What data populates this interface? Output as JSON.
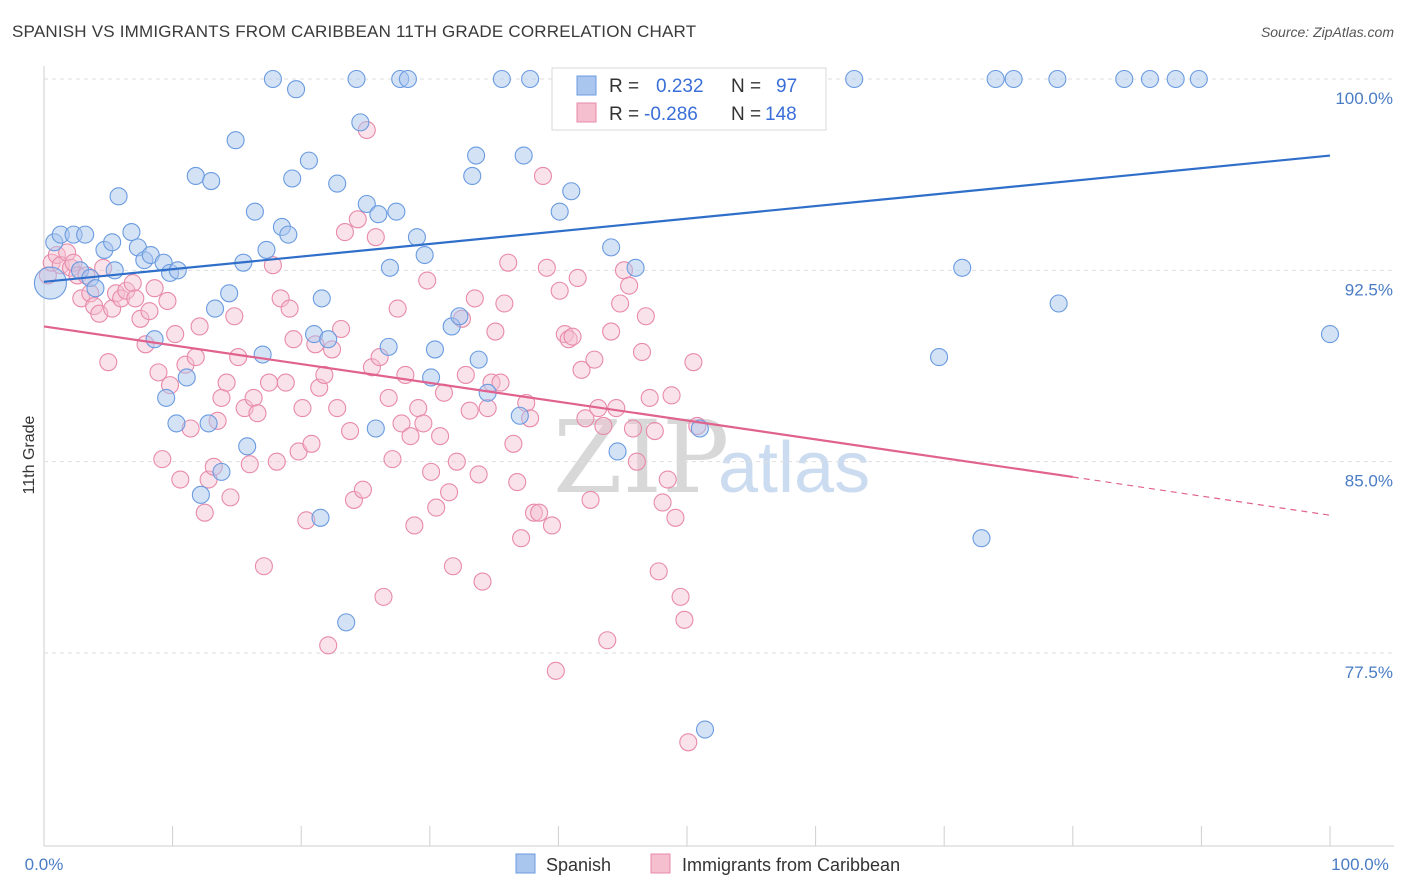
{
  "title": "SPANISH VS IMMIGRANTS FROM CARIBBEAN 11TH GRADE CORRELATION CHART",
  "source": "Source: ZipAtlas.com",
  "colors": {
    "blue": "#6a9be0",
    "blue_fill": "#a9c6ee",
    "blue_line": "#2f6fca",
    "pink": "#e88aaa",
    "pink_fill": "#f5bfd0",
    "pink_line": "#e0628e",
    "tick": "#4a7cc4"
  },
  "legend": {
    "r_label": "R =",
    "n_label": "N =",
    "rows": [
      {
        "r": "0.232",
        "n": "97"
      },
      {
        "r": "-0.286",
        "n": "148"
      }
    ]
  },
  "watermark": {
    "zip": "ZIP",
    "atlas": "atlas"
  },
  "chart_data": {
    "type": "scatter",
    "title": "SPANISH VS IMMIGRANTS FROM CARIBBEAN 11TH GRADE CORRELATION CHART",
    "xlabel": "",
    "ylabel": "11th Grade",
    "xlim": [
      0,
      100
    ],
    "ylim": [
      71,
      101
    ],
    "x_tick_labels": [
      "0.0%",
      "100.0%"
    ],
    "y_ticks": [
      77.5,
      85.0,
      92.5,
      100.0
    ],
    "y_tick_labels": [
      "77.5%",
      "85.0%",
      "92.5%",
      "100.0%"
    ],
    "series": [
      {
        "name": "Spanish",
        "R": 0.232,
        "N": 97,
        "trend": {
          "x": [
            0,
            100
          ],
          "y": [
            92.05,
            97.0
          ]
        },
        "points": [
          [
            0.5,
            92.0
          ],
          [
            0.8,
            93.6
          ],
          [
            1.3,
            93.9
          ],
          [
            2.3,
            93.9
          ],
          [
            2.8,
            92.5
          ],
          [
            3.2,
            93.9
          ],
          [
            3.6,
            92.2
          ],
          [
            4.0,
            91.8
          ],
          [
            4.7,
            93.3
          ],
          [
            5.5,
            92.5
          ],
          [
            5.3,
            93.6
          ],
          [
            5.8,
            95.4
          ],
          [
            6.8,
            94.0
          ],
          [
            7.3,
            93.4
          ],
          [
            7.8,
            92.9
          ],
          [
            8.3,
            93.1
          ],
          [
            8.6,
            89.8
          ],
          [
            9.3,
            92.8
          ],
          [
            9.8,
            92.4
          ],
          [
            10.4,
            92.5
          ],
          [
            10.3,
            86.5
          ],
          [
            11.1,
            88.3
          ],
          [
            11.8,
            96.2
          ],
          [
            12.2,
            83.7
          ],
          [
            12.8,
            86.5
          ],
          [
            13.3,
            91.0
          ],
          [
            13.8,
            84.6
          ],
          [
            14.4,
            91.6
          ],
          [
            14.9,
            97.6
          ],
          [
            15.5,
            92.8
          ],
          [
            15.8,
            85.6
          ],
          [
            16.4,
            94.8
          ],
          [
            17.0,
            89.2
          ],
          [
            17.3,
            93.3
          ],
          [
            17.8,
            100.0
          ],
          [
            18.5,
            94.2
          ],
          [
            19.0,
            93.9
          ],
          [
            19.3,
            96.1
          ],
          [
            19.6,
            99.6
          ],
          [
            20.6,
            96.8
          ],
          [
            21.0,
            90.0
          ],
          [
            21.6,
            91.4
          ],
          [
            22.1,
            89.8
          ],
          [
            21.5,
            82.8
          ],
          [
            22.8,
            95.9
          ],
          [
            23.5,
            78.7
          ],
          [
            24.3,
            100.0
          ],
          [
            24.6,
            98.3
          ],
          [
            25.1,
            95.1
          ],
          [
            26.0,
            94.7
          ],
          [
            26.8,
            89.5
          ],
          [
            26.9,
            92.6
          ],
          [
            27.4,
            94.8
          ],
          [
            27.7,
            100.0
          ],
          [
            28.3,
            100.0
          ],
          [
            29.0,
            93.8
          ],
          [
            29.6,
            93.1
          ],
          [
            30.1,
            88.3
          ],
          [
            30.4,
            89.4
          ],
          [
            31.7,
            90.3
          ],
          [
            32.3,
            90.7
          ],
          [
            33.3,
            96.2
          ],
          [
            33.6,
            97.0
          ],
          [
            33.8,
            89.0
          ],
          [
            34.5,
            87.7
          ],
          [
            35.6,
            100.0
          ],
          [
            37.3,
            97.0
          ],
          [
            37.8,
            100.0
          ],
          [
            40.1,
            94.8
          ],
          [
            40.3,
            100.0
          ],
          [
            41.0,
            95.6
          ],
          [
            42.8,
            99.6
          ],
          [
            44.1,
            93.4
          ],
          [
            44.6,
            85.4
          ],
          [
            45.5,
            100.0
          ],
          [
            46.0,
            92.6
          ],
          [
            50.8,
            100.0
          ],
          [
            51.0,
            86.3
          ],
          [
            51.4,
            74.5
          ],
          [
            56.3,
            100.0
          ],
          [
            63.0,
            100.0
          ],
          [
            69.6,
            89.1
          ],
          [
            71.4,
            92.6
          ],
          [
            72.9,
            82.0
          ],
          [
            74.0,
            100.0
          ],
          [
            75.4,
            100.0
          ],
          [
            78.8,
            100.0
          ],
          [
            78.9,
            91.2
          ],
          [
            84.0,
            100.0
          ],
          [
            86.0,
            100.0
          ],
          [
            88.0,
            100.0
          ],
          [
            89.8,
            100.0
          ],
          [
            100.0,
            90.0
          ],
          [
            13.0,
            96.0
          ],
          [
            25.8,
            86.3
          ],
          [
            37.0,
            86.8
          ],
          [
            9.5,
            87.5
          ]
        ]
      },
      {
        "name": "Immigrants from Caribbean",
        "R": -0.286,
        "N": 148,
        "trend": {
          "x": [
            0,
            80
          ],
          "y": [
            90.3,
            84.4
          ]
        },
        "trend_dashed": {
          "x": [
            80,
            100
          ],
          "y": [
            84.4,
            82.9
          ]
        },
        "points": [
          [
            0.3,
            92.3
          ],
          [
            0.6,
            92.8
          ],
          [
            1.0,
            93.1
          ],
          [
            1.3,
            92.7
          ],
          [
            1.8,
            93.2
          ],
          [
            2.1,
            92.6
          ],
          [
            2.3,
            92.8
          ],
          [
            2.6,
            92.3
          ],
          [
            2.9,
            91.4
          ],
          [
            3.3,
            92.3
          ],
          [
            3.6,
            91.6
          ],
          [
            3.9,
            91.1
          ],
          [
            4.3,
            90.8
          ],
          [
            4.6,
            92.6
          ],
          [
            5.0,
            88.9
          ],
          [
            5.3,
            91.0
          ],
          [
            5.6,
            91.6
          ],
          [
            6.0,
            91.4
          ],
          [
            6.4,
            91.7
          ],
          [
            6.9,
            92.0
          ],
          [
            7.1,
            91.4
          ],
          [
            7.5,
            90.6
          ],
          [
            7.9,
            89.6
          ],
          [
            8.2,
            90.9
          ],
          [
            8.6,
            91.8
          ],
          [
            8.9,
            88.5
          ],
          [
            9.2,
            85.1
          ],
          [
            9.6,
            91.3
          ],
          [
            9.8,
            88.0
          ],
          [
            10.2,
            90.0
          ],
          [
            10.6,
            84.3
          ],
          [
            11.0,
            88.8
          ],
          [
            11.4,
            86.3
          ],
          [
            11.8,
            89.1
          ],
          [
            12.1,
            90.3
          ],
          [
            12.5,
            83.0
          ],
          [
            12.8,
            84.3
          ],
          [
            13.2,
            84.8
          ],
          [
            13.5,
            86.6
          ],
          [
            13.8,
            87.5
          ],
          [
            14.2,
            88.1
          ],
          [
            14.5,
            83.6
          ],
          [
            14.8,
            90.7
          ],
          [
            15.1,
            89.1
          ],
          [
            15.6,
            87.1
          ],
          [
            16.0,
            84.9
          ],
          [
            16.3,
            87.5
          ],
          [
            16.6,
            86.9
          ],
          [
            17.1,
            80.9
          ],
          [
            17.5,
            88.1
          ],
          [
            17.8,
            92.7
          ],
          [
            18.1,
            85.0
          ],
          [
            18.4,
            91.4
          ],
          [
            18.8,
            88.1
          ],
          [
            19.1,
            91.0
          ],
          [
            19.4,
            89.8
          ],
          [
            19.8,
            85.4
          ],
          [
            20.1,
            87.1
          ],
          [
            20.4,
            82.7
          ],
          [
            20.8,
            85.7
          ],
          [
            21.1,
            89.6
          ],
          [
            21.4,
            87.9
          ],
          [
            21.8,
            88.4
          ],
          [
            22.1,
            77.8
          ],
          [
            22.4,
            89.4
          ],
          [
            22.8,
            87.1
          ],
          [
            23.1,
            90.2
          ],
          [
            23.4,
            94.0
          ],
          [
            23.8,
            86.2
          ],
          [
            24.1,
            83.5
          ],
          [
            24.4,
            94.5
          ],
          [
            24.8,
            83.9
          ],
          [
            25.1,
            98.0
          ],
          [
            25.5,
            88.7
          ],
          [
            25.8,
            93.8
          ],
          [
            26.1,
            89.1
          ],
          [
            26.4,
            79.7
          ],
          [
            26.8,
            87.5
          ],
          [
            27.1,
            85.1
          ],
          [
            27.5,
            91.0
          ],
          [
            27.8,
            86.5
          ],
          [
            28.1,
            88.4
          ],
          [
            28.5,
            86.0
          ],
          [
            28.8,
            82.5
          ],
          [
            29.1,
            87.1
          ],
          [
            29.5,
            86.5
          ],
          [
            29.8,
            92.1
          ],
          [
            30.1,
            84.6
          ],
          [
            30.5,
            83.2
          ],
          [
            30.8,
            86.0
          ],
          [
            31.1,
            87.7
          ],
          [
            31.5,
            83.8
          ],
          [
            31.8,
            80.9
          ],
          [
            32.1,
            85.0
          ],
          [
            32.5,
            90.6
          ],
          [
            32.8,
            88.4
          ],
          [
            33.1,
            87.0
          ],
          [
            33.5,
            91.4
          ],
          [
            33.8,
            84.5
          ],
          [
            34.1,
            80.3
          ],
          [
            34.5,
            87.1
          ],
          [
            34.8,
            88.1
          ],
          [
            35.1,
            90.1
          ],
          [
            35.5,
            88.1
          ],
          [
            35.8,
            91.2
          ],
          [
            36.1,
            92.8
          ],
          [
            36.5,
            85.7
          ],
          [
            36.8,
            84.2
          ],
          [
            37.1,
            82.0
          ],
          [
            37.5,
            87.3
          ],
          [
            37.8,
            86.7
          ],
          [
            38.1,
            83.0
          ],
          [
            38.5,
            83.0
          ],
          [
            38.8,
            96.2
          ],
          [
            39.1,
            92.6
          ],
          [
            39.5,
            82.5
          ],
          [
            39.8,
            76.8
          ],
          [
            40.1,
            91.7
          ],
          [
            40.5,
            90.0
          ],
          [
            40.8,
            89.8
          ],
          [
            41.1,
            89.9
          ],
          [
            41.5,
            92.2
          ],
          [
            41.8,
            88.6
          ],
          [
            42.1,
            86.7
          ],
          [
            42.5,
            83.5
          ],
          [
            42.8,
            89.0
          ],
          [
            43.1,
            87.1
          ],
          [
            43.5,
            86.4
          ],
          [
            43.8,
            78.0
          ],
          [
            44.1,
            90.1
          ],
          [
            44.5,
            87.1
          ],
          [
            44.8,
            91.2
          ],
          [
            45.1,
            92.5
          ],
          [
            45.5,
            91.9
          ],
          [
            45.8,
            86.3
          ],
          [
            46.1,
            85.0
          ],
          [
            46.5,
            89.3
          ],
          [
            46.8,
            90.7
          ],
          [
            47.1,
            87.5
          ],
          [
            47.5,
            86.2
          ],
          [
            47.8,
            80.7
          ],
          [
            48.1,
            83.4
          ],
          [
            48.5,
            84.3
          ],
          [
            48.8,
            87.6
          ],
          [
            49.1,
            82.8
          ],
          [
            49.5,
            79.7
          ],
          [
            49.8,
            78.8
          ],
          [
            50.1,
            74.0
          ],
          [
            50.5,
            88.9
          ],
          [
            50.8,
            86.4
          ]
        ]
      }
    ]
  },
  "bottom_legend": [
    {
      "label": "Spanish"
    },
    {
      "label": "Immigrants from Caribbean"
    }
  ]
}
